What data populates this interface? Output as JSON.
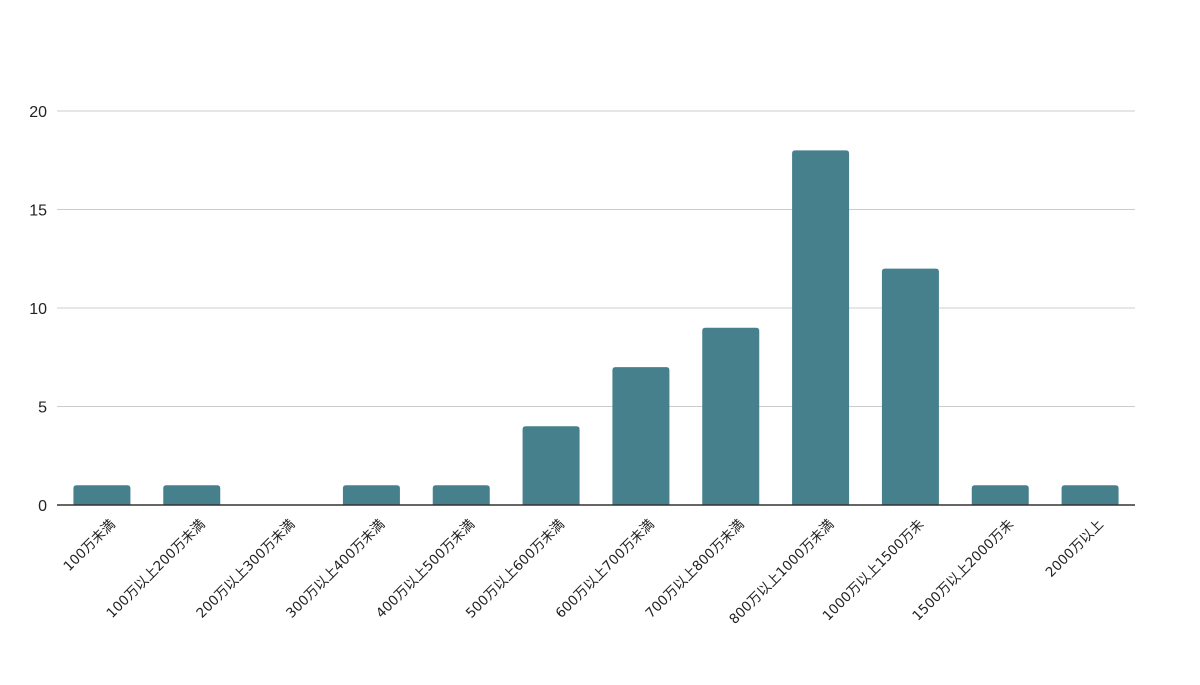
{
  "chart_data": {
    "type": "bar",
    "title": "",
    "xlabel": "",
    "ylabel": "",
    "categories": [
      "100万未満",
      "100万以上200万未満",
      "200万以上300万未満",
      "300万以上400万未満",
      "400万以上500万未満",
      "500万以上600万未満",
      "600万以上700万未満",
      "700万以上800万未満",
      "800万以上1000万未満",
      "1000万以上1500万未",
      "1500万以上2000万未",
      "2000万以上"
    ],
    "values": [
      1,
      1,
      0,
      1,
      1,
      4,
      7,
      9,
      18,
      12,
      1,
      1
    ],
    "ylim": [
      0,
      20
    ],
    "yticks": [
      0,
      5,
      10,
      15,
      20
    ],
    "grid": true,
    "legend": "none",
    "bar_color": "#46808c"
  }
}
